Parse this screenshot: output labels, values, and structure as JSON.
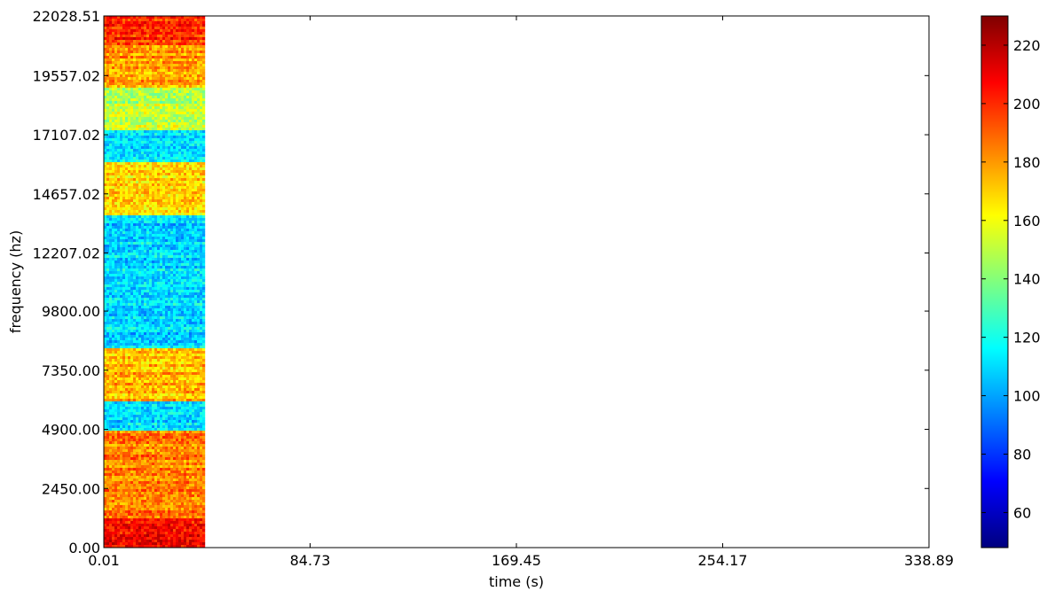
{
  "chart_data": {
    "type": "heatmap",
    "title": "",
    "xlabel": "time (s)",
    "ylabel": "frequency (hz)",
    "xlim": [
      0.01,
      338.89
    ],
    "ylim": [
      0.0,
      22028.51
    ],
    "x_ticks": [
      {
        "value": 0.01,
        "label": "0.01"
      },
      {
        "value": 84.73,
        "label": "84.73"
      },
      {
        "value": 169.45,
        "label": "169.45"
      },
      {
        "value": 254.17,
        "label": "254.17"
      },
      {
        "value": 338.89,
        "label": "338.89"
      }
    ],
    "y_ticks": [
      {
        "value": 0.0,
        "label": "0.00"
      },
      {
        "value": 2450.0,
        "label": "2450.00"
      },
      {
        "value": 4900.0,
        "label": "4900.00"
      },
      {
        "value": 7350.0,
        "label": "7350.00"
      },
      {
        "value": 9800.0,
        "label": "9800.00"
      },
      {
        "value": 12207.02,
        "label": "12207.02"
      },
      {
        "value": 14657.02,
        "label": "14657.02"
      },
      {
        "value": 17107.02,
        "label": "17107.02"
      },
      {
        "value": 19557.02,
        "label": "19557.02"
      },
      {
        "value": 22028.51,
        "label": "22028.51"
      }
    ],
    "data_time_range": [
      0.01,
      41.5
    ],
    "frequency_bands": [
      {
        "from": 0,
        "to": 1200,
        "level": 205
      },
      {
        "from": 1200,
        "to": 4900,
        "level": 185
      },
      {
        "from": 4900,
        "to": 6100,
        "level": 110
      },
      {
        "from": 6100,
        "to": 8300,
        "level": 175
      },
      {
        "from": 8300,
        "to": 13800,
        "level": 110
      },
      {
        "from": 13800,
        "to": 16000,
        "level": 168
      },
      {
        "from": 16000,
        "to": 17300,
        "level": 112
      },
      {
        "from": 17300,
        "to": 19000,
        "level": 150
      },
      {
        "from": 19000,
        "to": 20800,
        "level": 178
      },
      {
        "from": 20800,
        "to": 22028.51,
        "level": 200
      }
    ],
    "colormap": "jet",
    "colorbar": {
      "range": [
        48,
        230
      ],
      "ticks": [
        {
          "value": 60,
          "label": "60"
        },
        {
          "value": 80,
          "label": "80"
        },
        {
          "value": 100,
          "label": "100"
        },
        {
          "value": 120,
          "label": "120"
        },
        {
          "value": 140,
          "label": "140"
        },
        {
          "value": 160,
          "label": "160"
        },
        {
          "value": 180,
          "label": "180"
        },
        {
          "value": 200,
          "label": "200"
        },
        {
          "value": 220,
          "label": "220"
        }
      ]
    },
    "grid": false,
    "legend": "none"
  }
}
